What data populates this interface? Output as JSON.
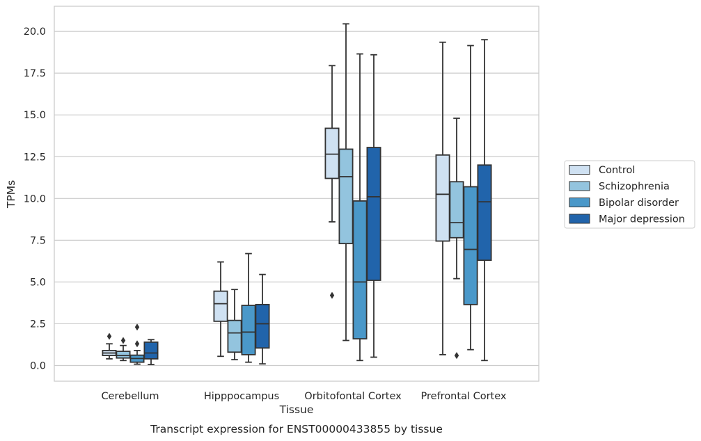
{
  "chart_data": {
    "type": "box",
    "xlabel": "Tissue",
    "ylabel": "TPMs",
    "caption": "Transcript expression for ENST00000433855 by tissue",
    "categories": [
      "Cerebellum",
      "Hipppocampus",
      "Orbitofontal Cortex",
      "Prefrontal Cortex"
    ],
    "ylim": [
      -0.9,
      21.5
    ],
    "yticks": [
      "0.0",
      "2.5",
      "5.0",
      "7.5",
      "10.0",
      "12.5",
      "15.0",
      "17.5",
      "20.0"
    ],
    "grid": "horizontal",
    "legend_position": "right",
    "series": [
      {
        "name": "Control",
        "color": "#cfe1f2",
        "boxes": [
          {
            "whislo": 0.4,
            "q1": 0.6,
            "med": 0.75,
            "q3": 0.9,
            "whishi": 1.3,
            "fliers": [
              1.75
            ]
          },
          {
            "whislo": 0.55,
            "q1": 2.65,
            "med": 3.7,
            "q3": 4.45,
            "whishi": 6.2,
            "fliers": []
          },
          {
            "whislo": 8.6,
            "q1": 11.2,
            "med": 12.65,
            "q3": 14.2,
            "whishi": 17.95,
            "fliers": [
              4.2
            ]
          },
          {
            "whislo": 0.65,
            "q1": 7.45,
            "med": 10.25,
            "q3": 12.6,
            "whishi": 19.35,
            "fliers": []
          }
        ]
      },
      {
        "name": "Schizophrenia",
        "color": "#93c4de",
        "boxes": [
          {
            "whislo": 0.3,
            "q1": 0.45,
            "med": 0.6,
            "q3": 0.85,
            "whishi": 1.2,
            "fliers": [
              1.5
            ]
          },
          {
            "whislo": 0.35,
            "q1": 0.8,
            "med": 1.95,
            "q3": 2.7,
            "whishi": 4.55,
            "fliers": []
          },
          {
            "whislo": 1.5,
            "q1": 7.3,
            "med": 11.3,
            "q3": 12.95,
            "whishi": 20.45,
            "fliers": []
          },
          {
            "whislo": 5.2,
            "q1": 7.65,
            "med": 8.55,
            "q3": 11.0,
            "whishi": 14.8,
            "fliers": [
              0.6
            ]
          }
        ]
      },
      {
        "name": "Bipolar disorder",
        "color": "#4a98c9",
        "boxes": [
          {
            "whislo": 0.08,
            "q1": 0.2,
            "med": 0.42,
            "q3": 0.62,
            "whishi": 0.9,
            "fliers": [
              1.3,
              2.3
            ]
          },
          {
            "whislo": 0.2,
            "q1": 0.65,
            "med": 2.0,
            "q3": 3.6,
            "whishi": 6.7,
            "fliers": []
          },
          {
            "whislo": 0.3,
            "q1": 1.6,
            "med": 5.0,
            "q3": 9.85,
            "whishi": 18.65,
            "fliers": []
          },
          {
            "whislo": 0.95,
            "q1": 3.65,
            "med": 6.95,
            "q3": 10.7,
            "whishi": 19.15,
            "fliers": []
          }
        ]
      },
      {
        "name": "Major depression",
        "color": "#2164ab",
        "boxes": [
          {
            "whislo": 0.06,
            "q1": 0.4,
            "med": 0.75,
            "q3": 1.4,
            "whishi": 1.55,
            "fliers": []
          },
          {
            "whislo": 0.1,
            "q1": 1.05,
            "med": 2.5,
            "q3": 3.65,
            "whishi": 5.45,
            "fliers": []
          },
          {
            "whislo": 0.5,
            "q1": 5.1,
            "med": 10.1,
            "q3": 13.05,
            "whishi": 18.6,
            "fliers": []
          },
          {
            "whislo": 0.3,
            "q1": 6.3,
            "med": 9.8,
            "q3": 12.0,
            "whishi": 19.5,
            "fliers": []
          }
        ]
      }
    ]
  }
}
